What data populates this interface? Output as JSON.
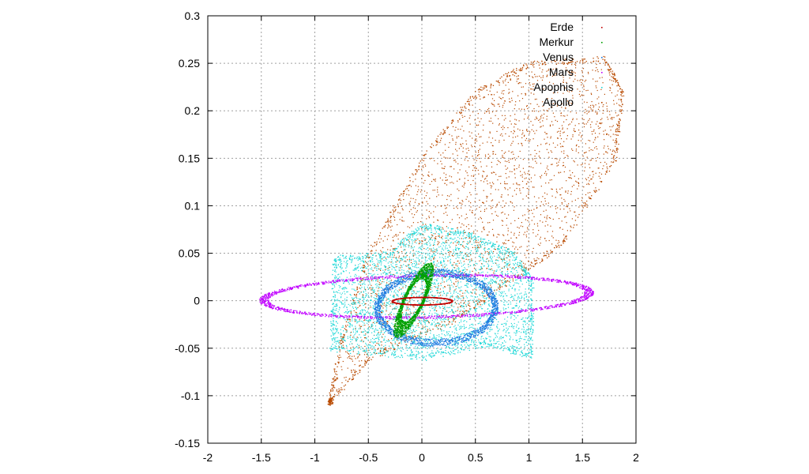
{
  "chart_data": {
    "type": "scatter",
    "title": "",
    "xlabel": "",
    "ylabel": "",
    "xlim": [
      -2,
      2
    ],
    "ylim": [
      -0.15,
      0.3
    ],
    "xticks": [
      "-2",
      "-1.5",
      "-1",
      "-0.5",
      "0",
      "0.5",
      "1",
      "1.5",
      "2"
    ],
    "yticks": [
      "-0.15",
      "-0.1",
      "-0.05",
      "0",
      "0.05",
      "0.1",
      "0.15",
      "0.2",
      "0.25",
      "0.3"
    ],
    "grid": true,
    "legend_position": "top-right",
    "series": [
      {
        "name": "Erde",
        "color": "#c00000",
        "shape": "ring",
        "center": [
          0,
          0
        ],
        "a": 0.28,
        "b": 0.004,
        "tilt_deg": 0.2,
        "thickness": 0.003
      },
      {
        "name": "Merkur",
        "color": "#00a000",
        "shape": "ring",
        "center": [
          -0.08,
          0.001
        ],
        "a": 0.085,
        "b": 0.034,
        "tilt_deg": 155,
        "thickness": 0.012
      },
      {
        "name": "Venus",
        "color": "#1f7be0",
        "shape": "ring",
        "center": [
          0.13,
          -0.007
        ],
        "a": 0.55,
        "b": 0.037,
        "tilt_deg": 1.5,
        "thickness": 0.03
      },
      {
        "name": "Mars",
        "color": "#c000ff",
        "shape": "ring",
        "center": [
          0.04,
          0.005
        ],
        "a": 1.52,
        "b": 0.022,
        "tilt_deg": 1.4,
        "thickness": 0.045
      },
      {
        "name": "Apophis",
        "color": "#20d8d8",
        "shape": "region",
        "polygon": [
          [
            -0.82,
            0.045
          ],
          [
            -0.3,
            0.05
          ],
          [
            0.0,
            0.08
          ],
          [
            0.45,
            0.07
          ],
          [
            0.85,
            0.05
          ],
          [
            1.03,
            0.02
          ],
          [
            1.02,
            -0.058
          ],
          [
            0.6,
            -0.045
          ],
          [
            0.0,
            -0.06
          ],
          [
            -0.85,
            -0.05
          ]
        ]
      },
      {
        "name": "Apollo",
        "color": "#b84a00",
        "shape": "region",
        "polygon": [
          [
            -0.87,
            -0.107
          ],
          [
            -0.75,
            -0.04
          ],
          [
            -0.5,
            0.05
          ],
          [
            0.0,
            0.15
          ],
          [
            0.5,
            0.22
          ],
          [
            1.0,
            0.25
          ],
          [
            1.7,
            0.255
          ],
          [
            1.87,
            0.22
          ],
          [
            1.8,
            0.15
          ],
          [
            1.3,
            0.06
          ],
          [
            0.8,
            0.02
          ],
          [
            0.3,
            -0.02
          ],
          [
            -0.5,
            -0.06
          ],
          [
            -0.85,
            -0.105
          ]
        ]
      }
    ]
  }
}
